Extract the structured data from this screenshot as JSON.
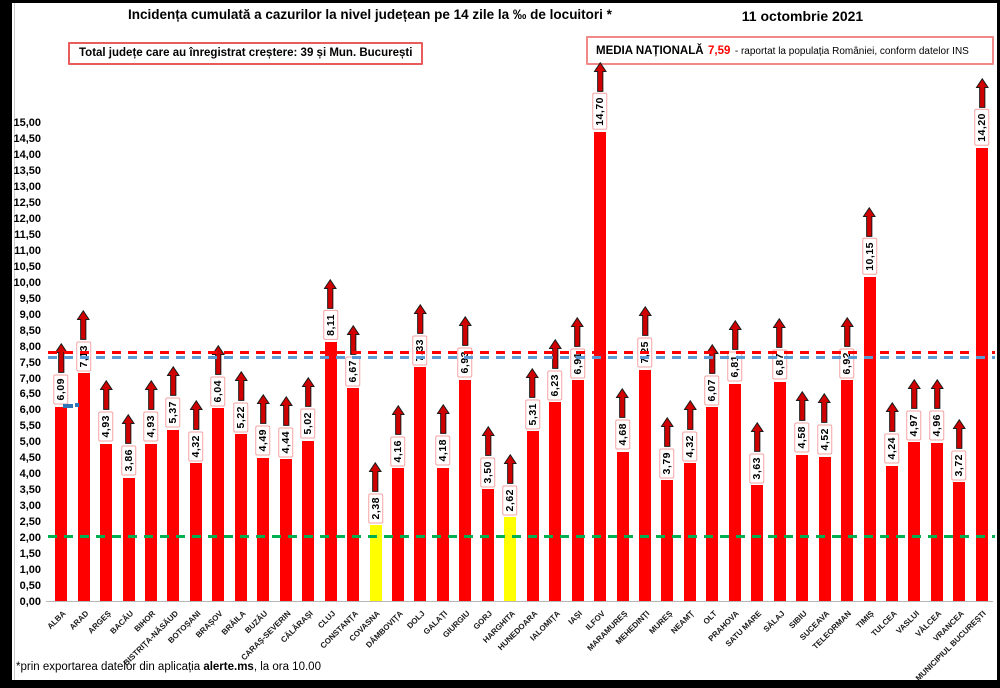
{
  "header": {
    "title": "Incidența cumulată a cazurilor la nivel județean pe 14 zile la ‰ de locuitori *",
    "date": "11 octombrie 2021"
  },
  "annotations": {
    "growth_box": "Total județe care au înregistrat creștere:  39 și Mun. București",
    "media_label": "MEDIA NAȚIONALĂ",
    "media_value": "7,59",
    "media_suffix": "-  raportat la populația României, conform datelor INS"
  },
  "footer": {
    "prefix": "*prin exportarea datelor din aplicația ",
    "bold": "alerte.ms",
    "suffix": ", la ora 10.00"
  },
  "colors": {
    "bar": "#ff0000",
    "bar_highlight": "#ffff00",
    "arrow": "#d00000",
    "national_avg_line_red": "#ff0000",
    "national_avg_line_blue": "#5b9bd5",
    "threshold_line_green": "#00b050",
    "label_box_border": "#f5a3a3",
    "box_border_red": "#e85c5c",
    "media_value_red": "#ff0000",
    "marker_blue": "#2e75b6"
  },
  "chart_data": {
    "type": "bar",
    "title": "Incidența cumulată a cazurilor la nivel județean pe 14 zile la ‰ de locuitori *",
    "xlabel": "",
    "ylabel": "",
    "ylim": [
      0,
      15.66
    ],
    "ytick_step": 0.5,
    "grid": false,
    "legend": "none",
    "categories": [
      "ALBA",
      "ARAD",
      "ARGEȘ",
      "BACĂU",
      "BIHOR",
      "BISTRIȚA-NĂSĂUD",
      "BOTOȘANI",
      "BRAȘOV",
      "BRĂILA",
      "BUZĂU",
      "CARAȘ-SEVERIN",
      "CĂLĂRAȘI",
      "CLUJ",
      "CONSTANȚA",
      "COVASNA",
      "DÂMBOVIȚA",
      "DOLJ",
      "GALAȚI",
      "GIURGIU",
      "GORJ",
      "HARGHITA",
      "HUNEDOARA",
      "IALOMIȚA",
      "IAȘI",
      "ILFOV",
      "MARAMUREȘ",
      "MEHEDINȚI",
      "MUREȘ",
      "NEAMȚ",
      "OLT",
      "PRAHOVA",
      "SATU MARE",
      "SĂLAJ",
      "SIBIU",
      "SUCEAVA",
      "TELEORMAN",
      "TIMIȘ",
      "TULCEA",
      "VASLUI",
      "VÂLCEA",
      "VRANCEA",
      "MUNICIPIUL BUCUREȘTI"
    ],
    "values": [
      6.09,
      7.13,
      4.93,
      3.86,
      4.93,
      5.37,
      4.32,
      6.04,
      5.22,
      4.49,
      4.44,
      5.02,
      8.11,
      6.67,
      2.38,
      4.16,
      7.33,
      4.18,
      6.93,
      3.5,
      2.62,
      5.31,
      6.23,
      6.91,
      14.7,
      4.68,
      7.25,
      3.79,
      4.32,
      6.07,
      6.81,
      3.63,
      6.87,
      4.58,
      4.52,
      6.92,
      10.15,
      4.24,
      4.97,
      4.96,
      3.72,
      14.2
    ],
    "labels": [
      "6,09",
      "7,13",
      "4,93",
      "3,86",
      "4,93",
      "5,37",
      "4,32",
      "6,04",
      "5,22",
      "4,49",
      "4,44",
      "5,02",
      "8,11",
      "6,67",
      "2,38",
      "4,16",
      "7,33",
      "4,18",
      "6,93",
      "3,50",
      "2,62",
      "5,31",
      "6,23",
      "6,91",
      "14,70",
      "4,68",
      "7,25",
      "3,79",
      "4,32",
      "6,07",
      "6,81",
      "3,63",
      "6,87",
      "4,58",
      "4,52",
      "6,92",
      "10,15",
      "4,24",
      "4,97",
      "4,96",
      "3,72",
      "14,20"
    ],
    "highlight_indices": [
      14,
      20
    ],
    "yticks": [
      "15,00",
      "14,50",
      "14,00",
      "13,50",
      "13,00",
      "12,50",
      "12,00",
      "11,50",
      "11,00",
      "10,50",
      "10,00",
      "9,50",
      "9,00",
      "8,50",
      "8,00",
      "7,50",
      "7,00",
      "6,50",
      "6,00",
      "5,50",
      "5,00",
      "4,50",
      "4,00",
      "3,50",
      "3,00",
      "2,50",
      "2,00",
      "1,50",
      "1,00",
      "0,50",
      "0,00"
    ],
    "reference_lines": [
      {
        "name": "national-average-red",
        "value": 7.76,
        "color": "#ff0000"
      },
      {
        "name": "national-average-blue",
        "value": 7.6,
        "color": "#5b9bd5"
      },
      {
        "name": "threshold-green",
        "value": 2.0,
        "color": "#00b050"
      }
    ],
    "markers": [
      {
        "bar": 0,
        "value": 6.03,
        "width": 10,
        "height": 4
      },
      {
        "bar": 1,
        "value": 6.08,
        "width": 4,
        "height": 4
      }
    ]
  }
}
